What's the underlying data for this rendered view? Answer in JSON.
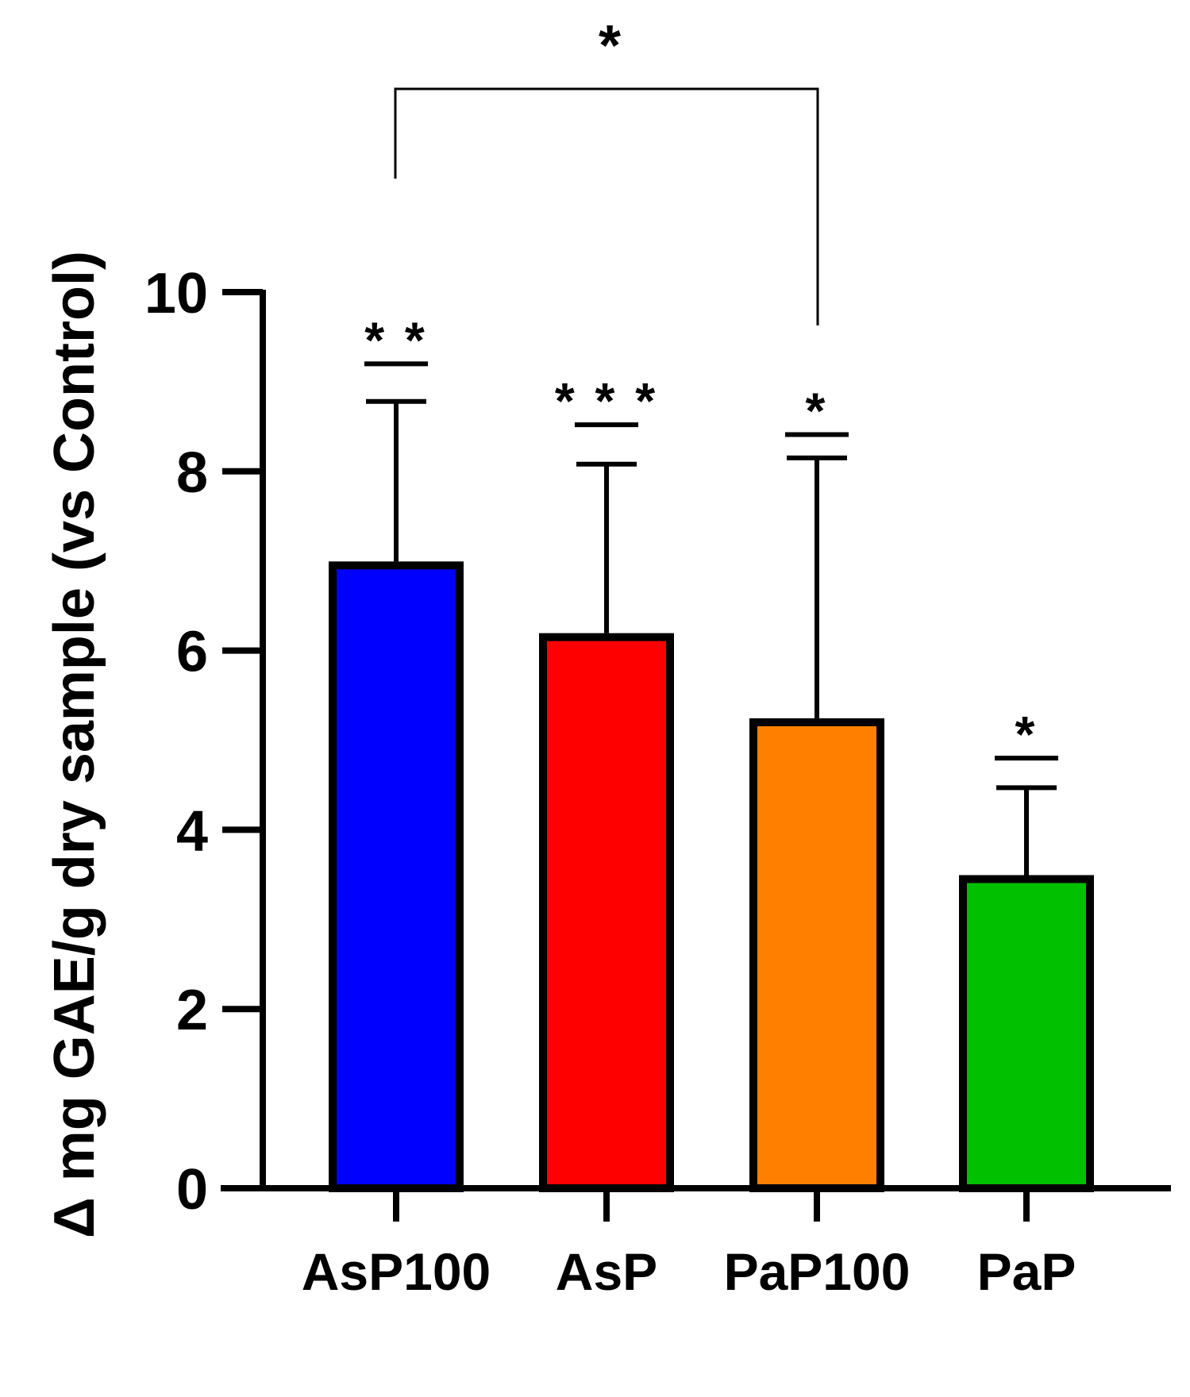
{
  "chart_data": {
    "type": "bar",
    "title": "",
    "xlabel": "",
    "ylabel": "Δ mg GAE/g dry sample (vs Control)",
    "categories": [
      "AsP100",
      "AsP",
      "PaP100",
      "PaP"
    ],
    "values": [
      6.95,
      6.15,
      5.2,
      3.45
    ],
    "error_upper": [
      8.78,
      8.08,
      8.15,
      4.47
    ],
    "colors": [
      "#0000ff",
      "#ff0000",
      "#ff8000",
      "#00c000"
    ],
    "significance": [
      {
        "text": "* *",
        "line_at": 9.2
      },
      {
        "text": "* * *",
        "line_at": 8.52
      },
      {
        "text": "*",
        "line_at": 8.41
      },
      {
        "text": "*",
        "line_at": 4.8
      }
    ],
    "comparison": {
      "from": "AsP100",
      "to": "PaP100",
      "label": "*"
    },
    "ylim": [
      0,
      10
    ],
    "yticks": [
      "0",
      "2",
      "4",
      "6",
      "8",
      "10"
    ],
    "grid": false
  }
}
